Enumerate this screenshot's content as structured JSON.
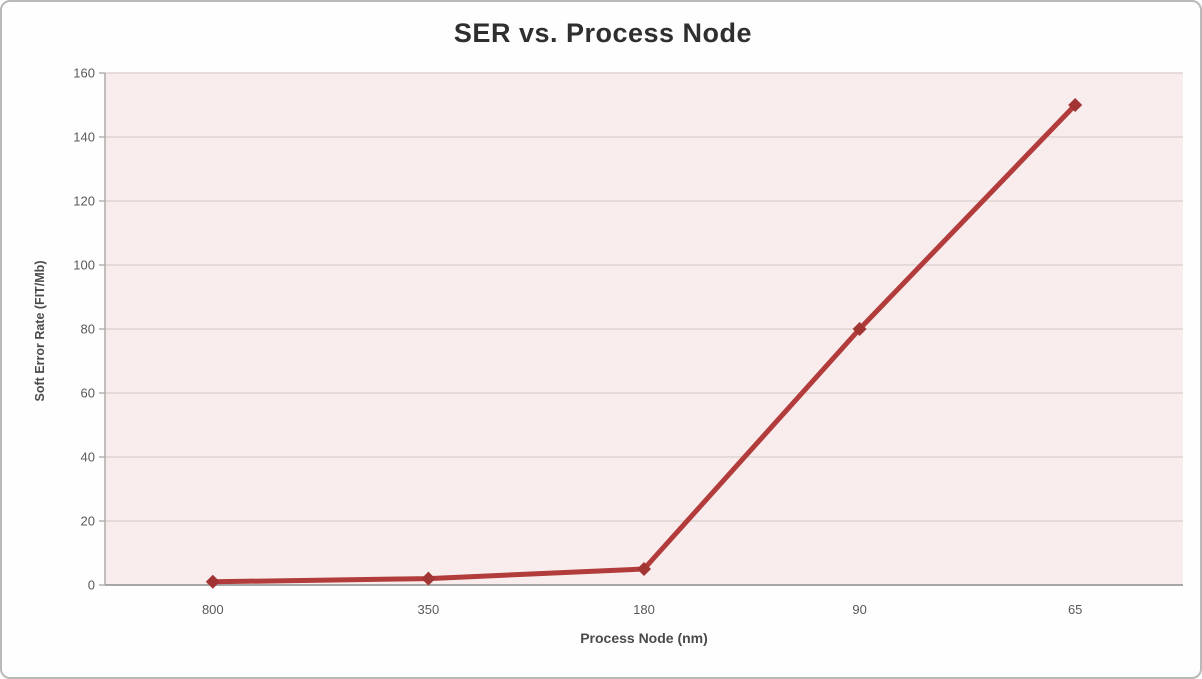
{
  "chart": {
    "title": "SER vs. Process Node",
    "x_axis_title": "Process Node (nm)",
    "y_axis_title": "Soft Error Rate (FIT/Mb)"
  },
  "chart_data": {
    "type": "line",
    "title": "SER vs. Process Node",
    "xlabel": "Process Node (nm)",
    "ylabel": "Soft Error Rate (FIT/Mb)",
    "categories": [
      "800",
      "350",
      "180",
      "90",
      "65"
    ],
    "values": [
      1,
      2,
      5,
      80,
      150
    ],
    "ylim": [
      0,
      160
    ],
    "yticks": [
      0,
      20,
      40,
      60,
      80,
      100,
      120,
      140,
      160
    ],
    "grid": "horizontal",
    "legend": "none",
    "marker": "diamond",
    "colors": {
      "line": "#b23b3b",
      "marker": "#a23434",
      "plot_bg": "#f8ecec",
      "gridline": "#ddd4d0",
      "axis": "#b5adad",
      "tick_text": "#595959",
      "title_text": "#2f2f2f",
      "outer_border": "#b9b9b9",
      "page_bg": "#fefefe"
    }
  }
}
